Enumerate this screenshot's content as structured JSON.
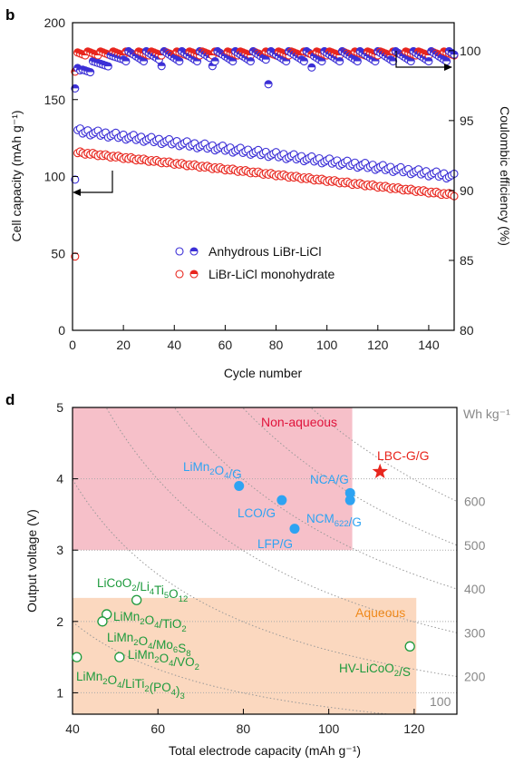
{
  "chart_data": [
    {
      "panel": "b",
      "type": "scatter",
      "xlabel": "Cycle number",
      "ylabel_left": "Cell capacity (mAh g⁻¹)",
      "ylabel_right": "Coulombic efficiency (%)",
      "xlim": [
        0,
        150
      ],
      "ylim_left": [
        0,
        200
      ],
      "ylim_right": [
        80,
        102
      ],
      "xticks": [
        "0",
        "20",
        "40",
        "60",
        "80",
        "100",
        "120",
        "140"
      ],
      "yticks_left": [
        "0",
        "50",
        "100",
        "150",
        "200"
      ],
      "yticks_right": [
        "80",
        "85",
        "90",
        "95",
        "100"
      ],
      "legend": [
        "Anhydrous LiBr-LiCl",
        "LiBr-LiCl monohydrate"
      ],
      "colors": {
        "anhydrous": "#3b2fd6",
        "monohydrate": "#e8261e"
      },
      "series": [
        {
          "name": "Anhydrous LiBr-LiCl",
          "kind": "capacity",
          "axis": "left",
          "start": 130,
          "end": 100,
          "first_value": 98
        },
        {
          "name": "LiBr-LiCl monohydrate",
          "kind": "capacity",
          "axis": "left",
          "start": 116,
          "end": 88,
          "first_value": 48
        },
        {
          "name": "Anhydrous LiBr-LiCl",
          "kind": "coulombic_efficiency",
          "axis": "right",
          "first_value": 97.3,
          "typical": 99.6,
          "dips": [
            [
              3,
              98.6
            ],
            [
              35,
              98.9
            ],
            [
              55,
              98.9
            ],
            [
              77,
              97.6
            ],
            [
              94,
              98.8
            ]
          ]
        },
        {
          "name": "LiBr-LiCl monohydrate",
          "kind": "coulombic_efficiency",
          "axis": "right",
          "first_value": 98.5,
          "typical": 99.8
        }
      ]
    },
    {
      "panel": "d",
      "type": "scatter",
      "xlabel": "Total electrode capacity (mAh g⁻¹)",
      "ylabel": "Output voltage (V)",
      "xlim": [
        40,
        130
      ],
      "ylim": [
        0.7,
        5
      ],
      "xticks": [
        "40",
        "60",
        "80",
        "100",
        "120"
      ],
      "yticks": [
        "1",
        "2",
        "3",
        "4",
        "5"
      ],
      "energy_unit": "Wh kg⁻¹",
      "energy_contours": [
        100,
        200,
        300,
        400,
        500,
        600
      ],
      "regions": [
        {
          "name": "Non-aqueous",
          "x": [
            40,
            105.5
          ],
          "y": [
            3,
            5
          ],
          "color": "#f6c0c9",
          "label_color": "#e0143c"
        },
        {
          "name": "Aqueous",
          "x": [
            40,
            120.5
          ],
          "y": [
            0.7,
            2.33
          ],
          "color": "#fbd8bf",
          "label_color": "#f08a1c"
        }
      ],
      "points": [
        {
          "label": "LiMn2O4/G",
          "x": 79,
          "y": 3.9,
          "group": "non-aqueous"
        },
        {
          "label": "LCO/G",
          "x": 89,
          "y": 3.7,
          "group": "non-aqueous"
        },
        {
          "label": "LFP/G",
          "x": 92,
          "y": 3.3,
          "group": "non-aqueous"
        },
        {
          "label": "NCA/G",
          "x": 105,
          "y": 3.8,
          "group": "non-aqueous"
        },
        {
          "label": "NCM622/G",
          "x": 105,
          "y": 3.7,
          "group": "non-aqueous"
        },
        {
          "label": "LBC-G/G",
          "x": 112,
          "y": 4.1,
          "group": "this-work"
        },
        {
          "label": "LiCoO2/Li4Ti5O12",
          "x": 55,
          "y": 2.3,
          "group": "aqueous"
        },
        {
          "label": "LiMn2O4/TiO2",
          "x": 48,
          "y": 2.1,
          "group": "aqueous"
        },
        {
          "label": "LiMn2O4/Mo6S8",
          "x": 47,
          "y": 2.0,
          "group": "aqueous"
        },
        {
          "label": "LiMn2O4/VO2",
          "x": 51,
          "y": 1.5,
          "group": "aqueous"
        },
        {
          "label": "LiMn2O4/LiTi2(PO4)3",
          "x": 41,
          "y": 1.5,
          "group": "aqueous"
        },
        {
          "label": "HV-LiCoO2/S",
          "x": 119,
          "y": 1.65,
          "group": "aqueous"
        }
      ],
      "colors": {
        "non-aqueous": "#2ea3f2",
        "aqueous": "#1d9a3c",
        "this-work": "#e8261e",
        "contour": "#999999"
      }
    }
  ]
}
